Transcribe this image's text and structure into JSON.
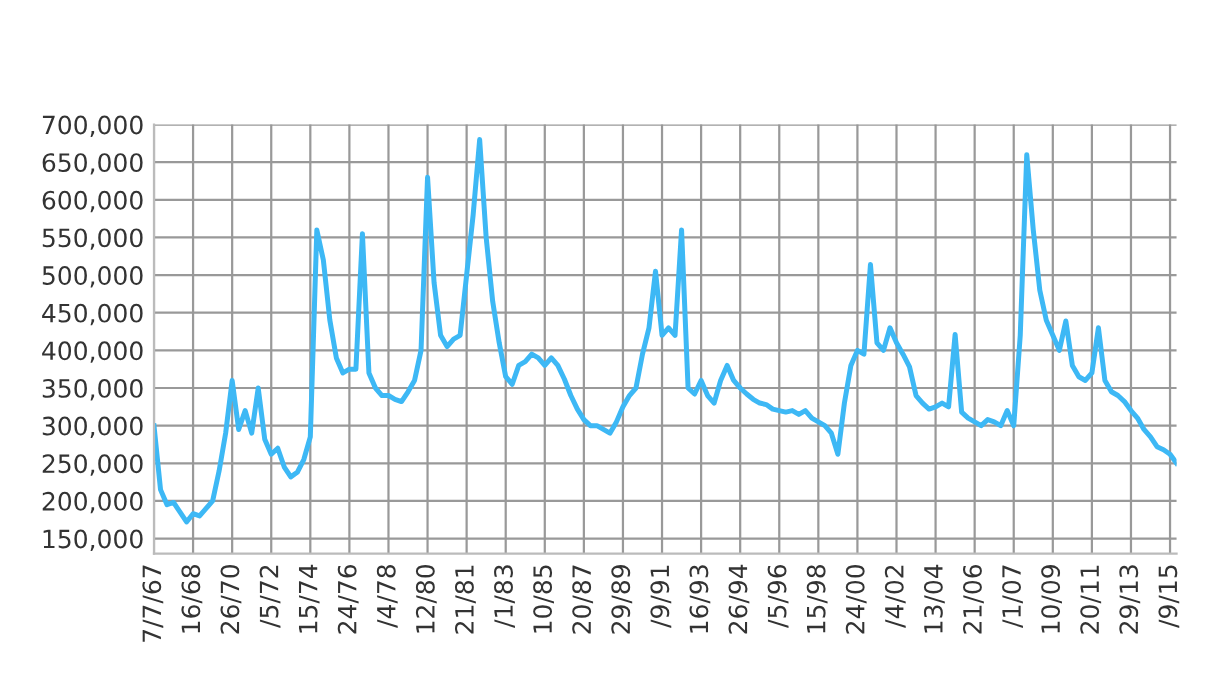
{
  "chart_data": {
    "type": "line",
    "categories": [
      "7/7/67",
      null,
      null,
      null,
      null,
      null,
      "16/68",
      null,
      null,
      null,
      null,
      null,
      "26/70",
      null,
      null,
      null,
      null,
      null,
      "/5/72",
      null,
      null,
      null,
      null,
      null,
      "15/74",
      null,
      null,
      null,
      null,
      null,
      "24/76",
      null,
      null,
      null,
      null,
      null,
      "/4/78",
      null,
      null,
      null,
      null,
      null,
      "12/80",
      null,
      null,
      null,
      null,
      null,
      "21/81",
      null,
      null,
      null,
      null,
      null,
      "/1/83",
      null,
      null,
      null,
      null,
      null,
      "10/85",
      null,
      null,
      null,
      null,
      null,
      "20/87",
      null,
      null,
      null,
      null,
      null,
      "29/89",
      null,
      null,
      null,
      null,
      null,
      "/9/91",
      null,
      null,
      null,
      null,
      null,
      "16/93",
      null,
      null,
      null,
      null,
      null,
      "26/94",
      null,
      null,
      null,
      null,
      null,
      "/5/96",
      null,
      null,
      null,
      null,
      null,
      "15/98",
      null,
      null,
      null,
      null,
      null,
      "24/00",
      null,
      null,
      null,
      null,
      null,
      "/4/02",
      null,
      null,
      null,
      null,
      null,
      "13/04",
      null,
      null,
      null,
      null,
      null,
      "21/06",
      null,
      null,
      null,
      null,
      null,
      "/1/07",
      null,
      null,
      null,
      null,
      null,
      "10/09",
      null,
      null,
      null,
      null,
      null,
      "20/11",
      null,
      null,
      null,
      null,
      null,
      "29/13",
      null,
      null,
      null,
      null,
      null,
      "/9/15",
      null
    ],
    "series": [
      {
        "color": "#3db8f5",
        "values": [
          300000,
          215000,
          195000,
          198000,
          185000,
          172000,
          183000,
          180000,
          190000,
          200000,
          240000,
          290000,
          360000,
          295000,
          320000,
          290000,
          350000,
          282000,
          262000,
          270000,
          245000,
          232000,
          238000,
          255000,
          285000,
          560000,
          520000,
          440000,
          390000,
          370000,
          375000,
          375000,
          555000,
          370000,
          350000,
          340000,
          340000,
          335000,
          332000,
          345000,
          360000,
          400000,
          630000,
          490000,
          420000,
          405000,
          415000,
          420000,
          500000,
          580000,
          680000,
          550000,
          465000,
          410000,
          365000,
          355000,
          380000,
          385000,
          395000,
          390000,
          380000,
          390000,
          380000,
          362000,
          340000,
          322000,
          308000,
          300000,
          300000,
          295000,
          290000,
          305000,
          325000,
          340000,
          350000,
          395000,
          430000,
          505000,
          420000,
          430000,
          420000,
          560000,
          350000,
          342000,
          360000,
          340000,
          330000,
          360000,
          380000,
          360000,
          350000,
          342000,
          335000,
          330000,
          328000,
          322000,
          320000,
          318000,
          320000,
          315000,
          320000,
          310000,
          305000,
          300000,
          290000,
          262000,
          330000,
          380000,
          400000,
          395000,
          514000,
          410000,
          400000,
          430000,
          410000,
          395000,
          378000,
          340000,
          330000,
          322000,
          325000,
          330000,
          325000,
          421000,
          318000,
          310000,
          305000,
          300000,
          308000,
          305000,
          300000,
          320000,
          300000,
          420000,
          660000,
          560000,
          480000,
          440000,
          420000,
          400000,
          439000,
          380000,
          365000,
          360000,
          370000,
          430000,
          360000,
          345000,
          340000,
          332000,
          320000,
          310000,
          295000,
          285000,
          272000,
          268000,
          262000,
          250000
        ]
      }
    ],
    "ylim": [
      130000,
      700000
    ],
    "yticks": [
      {
        "value": 150000,
        "label": "150,000"
      },
      {
        "value": 200000,
        "label": "200,000"
      },
      {
        "value": 250000,
        "label": "250,000"
      },
      {
        "value": 300000,
        "label": "300,000"
      },
      {
        "value": 350000,
        "label": "350,000"
      },
      {
        "value": 400000,
        "label": "400,000"
      },
      {
        "value": 450000,
        "label": "450,000"
      },
      {
        "value": 500000,
        "label": "500,000"
      },
      {
        "value": 550000,
        "label": "550,000"
      },
      {
        "value": 600000,
        "label": "600,000"
      },
      {
        "value": 650000,
        "label": "650,000"
      },
      {
        "value": 700000,
        "label": "700,000"
      }
    ],
    "grid": true
  }
}
